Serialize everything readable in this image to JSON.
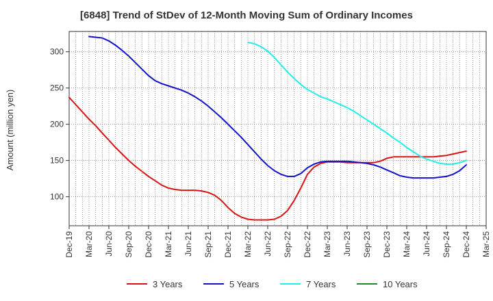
{
  "chart_data": {
    "type": "line",
    "title": "[6848]  Trend of StDev of 12-Month Moving Sum of Ordinary Incomes",
    "xlabel": "",
    "ylabel": "Amount (million yen)",
    "ylim": [
      60,
      328
    ],
    "yticks": [
      100,
      150,
      200,
      250,
      300
    ],
    "x_start": "Dec-19",
    "x_ticks": [
      "Dec-19",
      "Mar-20",
      "Jun-20",
      "Sep-20",
      "Dec-20",
      "Mar-21",
      "Jun-21",
      "Sep-21",
      "Dec-21",
      "Mar-22",
      "Jun-22",
      "Sep-22",
      "Dec-22",
      "Mar-23",
      "Jun-23",
      "Sep-23",
      "Dec-23",
      "Mar-24",
      "Jun-24",
      "Sep-24",
      "Dec-24",
      "Mar-25"
    ],
    "grid": true,
    "legend_position": "bottom",
    "series": [
      {
        "name": "3 Years",
        "color": "#dd1111",
        "points": [
          [
            "Dec-19",
            237
          ],
          [
            "Jan-20",
            227
          ],
          [
            "Feb-20",
            217
          ],
          [
            "Mar-20",
            207
          ],
          [
            "Apr-20",
            198
          ],
          [
            "May-20",
            188
          ],
          [
            "Jun-20",
            178
          ],
          [
            "Jul-20",
            168
          ],
          [
            "Aug-20",
            159
          ],
          [
            "Sep-20",
            150
          ],
          [
            "Oct-20",
            142
          ],
          [
            "Nov-20",
            135
          ],
          [
            "Dec-20",
            128
          ],
          [
            "Jan-21",
            122
          ],
          [
            "Feb-21",
            116
          ],
          [
            "Mar-21",
            112
          ],
          [
            "Apr-21",
            110
          ],
          [
            "May-21",
            109
          ],
          [
            "Jun-21",
            109
          ],
          [
            "Jul-21",
            109
          ],
          [
            "Aug-21",
            108
          ],
          [
            "Sep-21",
            106
          ],
          [
            "Oct-21",
            102
          ],
          [
            "Nov-21",
            95
          ],
          [
            "Dec-21",
            85
          ],
          [
            "Jan-22",
            77
          ],
          [
            "Feb-22",
            72
          ],
          [
            "Mar-22",
            69
          ],
          [
            "Apr-22",
            68
          ],
          [
            "May-22",
            68
          ],
          [
            "Jun-22",
            68
          ],
          [
            "Jul-22",
            69
          ],
          [
            "Aug-22",
            73
          ],
          [
            "Sep-22",
            81
          ],
          [
            "Oct-22",
            95
          ],
          [
            "Nov-22",
            112
          ],
          [
            "Dec-22",
            131
          ],
          [
            "Jan-23",
            141
          ],
          [
            "Feb-23",
            146
          ],
          [
            "Mar-23",
            148
          ],
          [
            "Apr-23",
            148
          ],
          [
            "May-23",
            148
          ],
          [
            "Jun-23",
            147
          ],
          [
            "Jul-23",
            147
          ],
          [
            "Aug-23",
            147
          ],
          [
            "Sep-23",
            147
          ],
          [
            "Oct-23",
            147
          ],
          [
            "Nov-23",
            149
          ],
          [
            "Dec-23",
            153
          ],
          [
            "Jan-24",
            155
          ],
          [
            "Feb-24",
            155
          ],
          [
            "Mar-24",
            155
          ],
          [
            "Apr-24",
            155
          ],
          [
            "May-24",
            155
          ],
          [
            "Jun-24",
            155
          ],
          [
            "Jul-24",
            155
          ],
          [
            "Aug-24",
            156
          ],
          [
            "Sep-24",
            157
          ],
          [
            "Oct-24",
            159
          ],
          [
            "Nov-24",
            161
          ],
          [
            "Dec-24",
            163
          ]
        ]
      },
      {
        "name": "5 Years",
        "color": "#1111cc",
        "points": [
          [
            "Mar-20",
            321
          ],
          [
            "Apr-20",
            320
          ],
          [
            "May-20",
            319
          ],
          [
            "Jun-20",
            315
          ],
          [
            "Jul-20",
            309
          ],
          [
            "Aug-20",
            302
          ],
          [
            "Sep-20",
            294
          ],
          [
            "Oct-20",
            285
          ],
          [
            "Nov-20",
            276
          ],
          [
            "Dec-20",
            267
          ],
          [
            "Jan-21",
            260
          ],
          [
            "Feb-21",
            256
          ],
          [
            "Mar-21",
            253
          ],
          [
            "Apr-21",
            250
          ],
          [
            "May-21",
            247
          ],
          [
            "Jun-21",
            243
          ],
          [
            "Jul-21",
            238
          ],
          [
            "Aug-21",
            232
          ],
          [
            "Sep-21",
            225
          ],
          [
            "Oct-21",
            217
          ],
          [
            "Nov-21",
            209
          ],
          [
            "Dec-21",
            200
          ],
          [
            "Jan-22",
            191
          ],
          [
            "Feb-22",
            182
          ],
          [
            "Mar-22",
            172
          ],
          [
            "Apr-22",
            162
          ],
          [
            "May-22",
            152
          ],
          [
            "Jun-22",
            143
          ],
          [
            "Jul-22",
            136
          ],
          [
            "Aug-22",
            131
          ],
          [
            "Sep-22",
            128
          ],
          [
            "Oct-22",
            128
          ],
          [
            "Nov-22",
            132
          ],
          [
            "Dec-22",
            140
          ],
          [
            "Jan-23",
            145
          ],
          [
            "Feb-23",
            148
          ],
          [
            "Mar-23",
            149
          ],
          [
            "Apr-23",
            149
          ],
          [
            "May-23",
            149
          ],
          [
            "Jun-23",
            149
          ],
          [
            "Jul-23",
            148
          ],
          [
            "Aug-23",
            147
          ],
          [
            "Sep-23",
            146
          ],
          [
            "Oct-23",
            144
          ],
          [
            "Nov-23",
            141
          ],
          [
            "Dec-23",
            137
          ],
          [
            "Jan-24",
            133
          ],
          [
            "Feb-24",
            129
          ],
          [
            "Mar-24",
            127
          ],
          [
            "Apr-24",
            126
          ],
          [
            "May-24",
            126
          ],
          [
            "Jun-24",
            126
          ],
          [
            "Jul-24",
            126
          ],
          [
            "Aug-24",
            127
          ],
          [
            "Sep-24",
            128
          ],
          [
            "Oct-24",
            131
          ],
          [
            "Nov-24",
            136
          ],
          [
            "Dec-24",
            144
          ]
        ]
      },
      {
        "name": "7 Years",
        "color": "#22eeee",
        "points": [
          [
            "Mar-22",
            313
          ],
          [
            "Apr-22",
            311
          ],
          [
            "May-22",
            307
          ],
          [
            "Jun-22",
            301
          ],
          [
            "Jul-22",
            292
          ],
          [
            "Aug-22",
            282
          ],
          [
            "Sep-22",
            272
          ],
          [
            "Oct-22",
            263
          ],
          [
            "Nov-22",
            255
          ],
          [
            "Dec-22",
            248
          ],
          [
            "Jan-23",
            243
          ],
          [
            "Feb-23",
            238
          ],
          [
            "Mar-23",
            235
          ],
          [
            "Apr-23",
            231
          ],
          [
            "May-23",
            227
          ],
          [
            "Jun-23",
            223
          ],
          [
            "Jul-23",
            218
          ],
          [
            "Aug-23",
            212
          ],
          [
            "Sep-23",
            206
          ],
          [
            "Oct-23",
            200
          ],
          [
            "Nov-23",
            194
          ],
          [
            "Dec-23",
            188
          ],
          [
            "Jan-24",
            181
          ],
          [
            "Feb-24",
            175
          ],
          [
            "Mar-24",
            168
          ],
          [
            "Apr-24",
            162
          ],
          [
            "May-24",
            156
          ],
          [
            "Jun-24",
            152
          ],
          [
            "Jul-24",
            149
          ],
          [
            "Aug-24",
            146
          ],
          [
            "Sep-24",
            145
          ],
          [
            "Oct-24",
            145
          ],
          [
            "Nov-24",
            147
          ],
          [
            "Dec-24",
            150
          ]
        ]
      },
      {
        "name": "10 Years",
        "color": "#228822",
        "points": []
      }
    ]
  }
}
